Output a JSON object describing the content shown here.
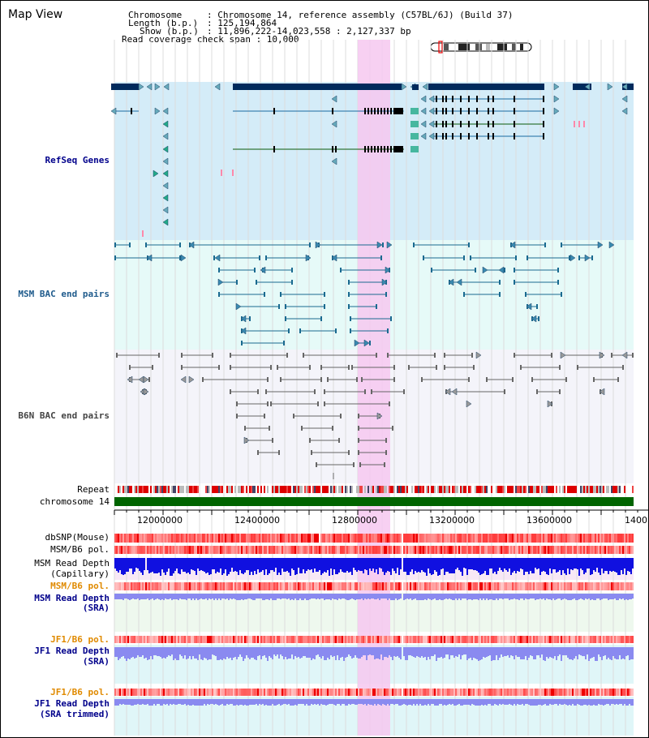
{
  "title": "Map View",
  "header": {
    "chromosome_key": "Chromosome",
    "chromosome_val": ": Chromosome 14, reference assembly (C57BL/6J) (Build 37)",
    "length_key": "Length (b.p.)",
    "length_val": ": 125,194,864",
    "show_key": "Show (b.p.)",
    "show_val": ": 11,896,222-14,023,558 : 2,127,337 bp",
    "read_span": "Read coverage check span : 10,000"
  },
  "tracks": {
    "refseq": "RefSeq Genes",
    "msm_bac": "MSM BAC end pairs",
    "b6n_bac": "B6N BAC end pairs",
    "repeat": "Repeat",
    "chrom": "chromosome 14",
    "dbsnp": "dbSNP(Mouse)",
    "msm_pol_1": "MSM/B6 pol.",
    "msm_depth_cap_1": "MSM Read Depth",
    "msm_depth_cap_2": "(Capillary)",
    "msm_pol_2": "MSM/B6 pol.",
    "msm_depth_sra_1": "MSM Read Depth",
    "msm_depth_sra_2": "(SRA)",
    "jf1_pol_1": "JF1/B6 pol.",
    "jf1_depth_sra_1": "JF1 Read Depth",
    "jf1_depth_sra_2": "(SRA)",
    "jf1_pol_2": "JF1/B6 pol.",
    "jf1_depth_trim_1": "JF1 Read Depth",
    "jf1_depth_trim_2": "(SRA trimmed)"
  },
  "axis": {
    "ticks": [
      "12000000",
      "12400000",
      "12800000",
      "13200000",
      "13600000",
      "1400"
    ]
  },
  "colors": {
    "refseq_bg": "#d4ecf8",
    "msm_bac_bg": "#e6faf8",
    "b6n_bac_bg": "#f4f4fa",
    "highlight": "#f6c8f0",
    "gene_dark": "#002a5c",
    "gene_line": "#1a6aa0",
    "gene_green": "#0a5a0a",
    "chrom_green": "#006400",
    "depth_blue": "#1010e0",
    "depth_lightblue": "#8a8af0"
  }
}
